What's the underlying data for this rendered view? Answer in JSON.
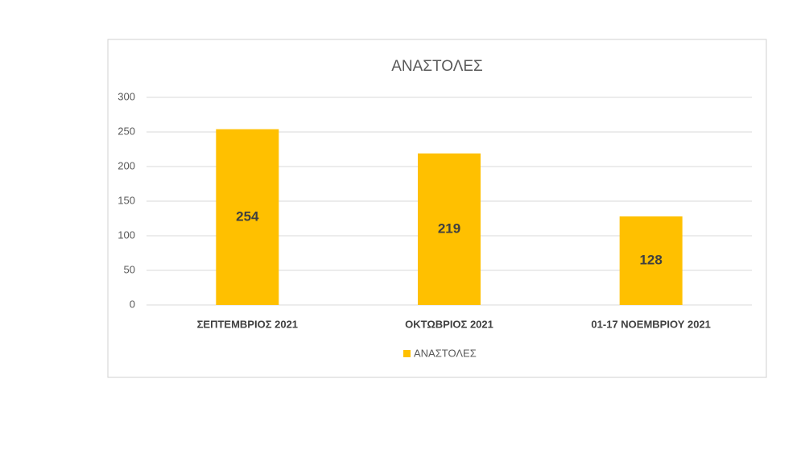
{
  "chart_data": {
    "type": "bar",
    "title": "ΑΝΑΣΤΟΛΕΣ",
    "categories": [
      "ΣΕΠΤΕΜΒΡΙΟΣ 2021",
      "ΟΚΤΩΒΡΙΟΣ 2021",
      "01-17 ΝΟΕΜΒΡΙΟΥ 2021"
    ],
    "series": [
      {
        "name": "ΑΝΑΣΤΟΛΕΣ",
        "color": "#ffc000",
        "values": [
          254,
          219,
          128
        ]
      }
    ],
    "ylim": [
      0,
      300
    ],
    "yticks": [
      0,
      50,
      100,
      150,
      200,
      250,
      300
    ],
    "grid": true,
    "legend": "bottom"
  }
}
